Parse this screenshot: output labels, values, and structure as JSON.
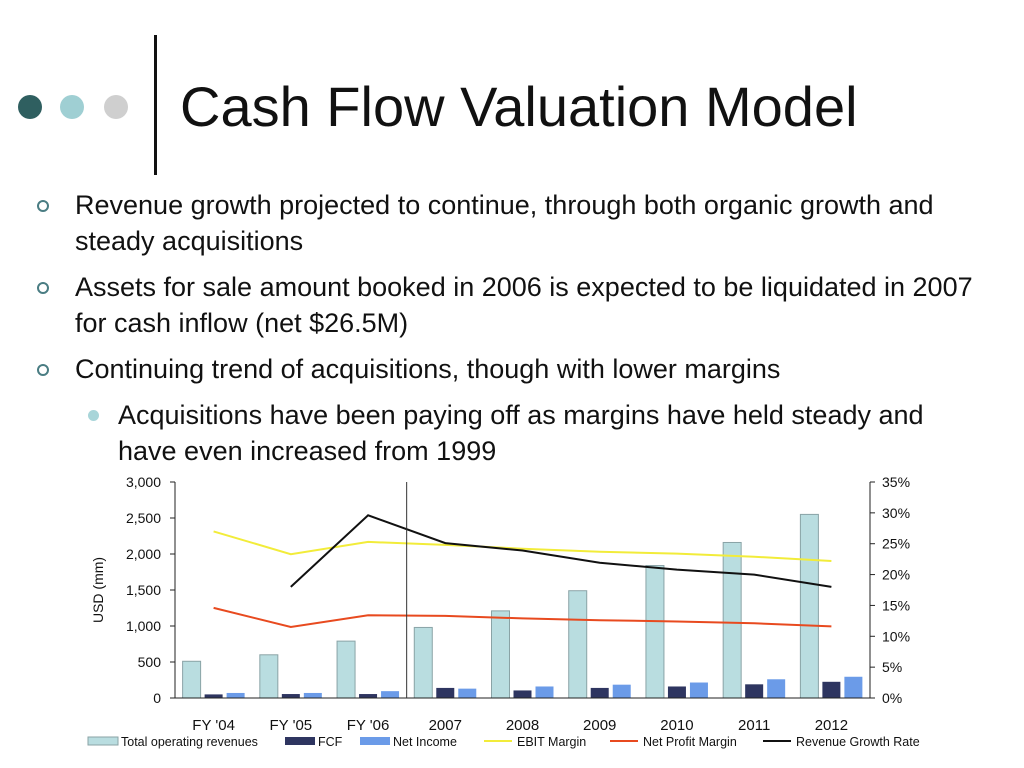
{
  "slide": {
    "title": "Cash Flow Valuation Model",
    "bullets": [
      {
        "level": 1,
        "text": "Revenue growth projected to continue, through both organic growth and steady acquisitions"
      },
      {
        "level": 1,
        "text": "Assets for sale amount booked in 2006 is expected to be liquidated in 2007 for cash inflow (net $26.5M)"
      },
      {
        "level": 1,
        "text": "Continuing trend of acquisitions, though with lower margins"
      },
      {
        "level": 2,
        "text": "Acquisitions have been paying off as margins have held steady and have even increased from 1999"
      }
    ],
    "colors": {
      "dot_dark": "#2f5f60",
      "dot_light": "#9fcfd3",
      "dot_gray": "#cfcfcf"
    }
  },
  "chart_data": {
    "type": "bar",
    "categories": [
      "FY '04",
      "FY '05",
      "FY '06",
      "2007",
      "2008",
      "2009",
      "2010",
      "2011",
      "2012"
    ],
    "ylabel": "USD (mm)",
    "ylim": [
      0,
      3000
    ],
    "yticks": [
      "3,000",
      "2,500",
      "2,000",
      "1,500",
      "1,000",
      "500",
      "0"
    ],
    "y2lim": [
      0,
      35
    ],
    "y2ticks": [
      "35%",
      "30%",
      "25%",
      "20%",
      "15%",
      "10%",
      "5%",
      "0%"
    ],
    "divider_after_category": 2,
    "legend_position": "bottom",
    "bar_series": [
      {
        "name": "Total operating revenues",
        "color": "#b9dde0",
        "values": [
          510,
          600,
          790,
          980,
          1210,
          1490,
          1840,
          2160,
          2550
        ]
      },
      {
        "name": "FCF",
        "color": "#2e3560",
        "values": [
          50,
          55,
          55,
          140,
          105,
          140,
          160,
          190,
          225
        ]
      },
      {
        "name": "Net Income",
        "color": "#6b9be8",
        "values": [
          70,
          70,
          95,
          130,
          160,
          185,
          215,
          260,
          295
        ]
      }
    ],
    "line_series": [
      {
        "name": "EBIT Margin",
        "color": "#f2ec3a",
        "axis": "right",
        "values": [
          27,
          23.3,
          25.3,
          24.8,
          24.2,
          23.7,
          23.4,
          22.9,
          22.2
        ]
      },
      {
        "name": "Net Profit Margin",
        "color": "#e84a1f",
        "axis": "right",
        "values": [
          14.6,
          11.5,
          13.4,
          13.3,
          12.9,
          12.6,
          12.4,
          12.1,
          11.6
        ]
      },
      {
        "name": "Revenue Growth Rate",
        "color": "#111111",
        "axis": "right",
        "values": [
          null,
          18,
          29.6,
          25.1,
          23.9,
          21.9,
          20.8,
          20,
          18
        ]
      }
    ]
  }
}
